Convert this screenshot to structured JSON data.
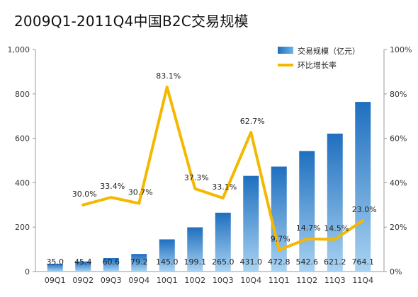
{
  "chart_data": {
    "type": "bar",
    "title": "2009Q1-2011Q4中国B2C交易规模",
    "categories": [
      "09Q1",
      "09Q2",
      "09Q3",
      "09Q4",
      "10Q1",
      "10Q2",
      "10Q3",
      "10Q4",
      "11Q1",
      "11Q2",
      "11Q3",
      "11Q4"
    ],
    "series": [
      {
        "name": "交易规模（亿元）",
        "type": "bar",
        "axis": "left",
        "values": [
          35.0,
          45.4,
          60.6,
          79.2,
          145.0,
          199.1,
          265.0,
          431.0,
          472.8,
          542.6,
          621.2,
          764.1
        ],
        "labels": [
          "35.0",
          "45.4",
          "60.6",
          "79.2",
          "145.0",
          "199.1",
          "265.0",
          "431.0",
          "472.8",
          "542.6",
          "621.2",
          "764.1"
        ],
        "color": "#2f86d0"
      },
      {
        "name": "环比增长率",
        "type": "line",
        "axis": "right",
        "values": [
          null,
          30.0,
          33.4,
          30.7,
          83.1,
          37.3,
          33.1,
          62.7,
          9.7,
          14.7,
          14.5,
          23.0
        ],
        "labels": [
          "",
          "30.0%",
          "33.4%",
          "30.7%",
          "83.1%",
          "37.3%",
          "33.1%",
          "62.7%",
          "9.7%",
          "14.7%",
          "14.5%",
          "23.0%"
        ],
        "color": "#f5b800"
      }
    ],
    "y_left": {
      "ylim": [
        0,
        1000
      ],
      "ticks": [
        "0",
        "200",
        "400",
        "600",
        "800",
        "1,000"
      ]
    },
    "y_right": {
      "ylim": [
        0,
        100
      ],
      "ticks": [
        "0%",
        "20%",
        "40%",
        "60%",
        "80%",
        "100%"
      ]
    },
    "legend_position": "top-right",
    "grid": false
  }
}
